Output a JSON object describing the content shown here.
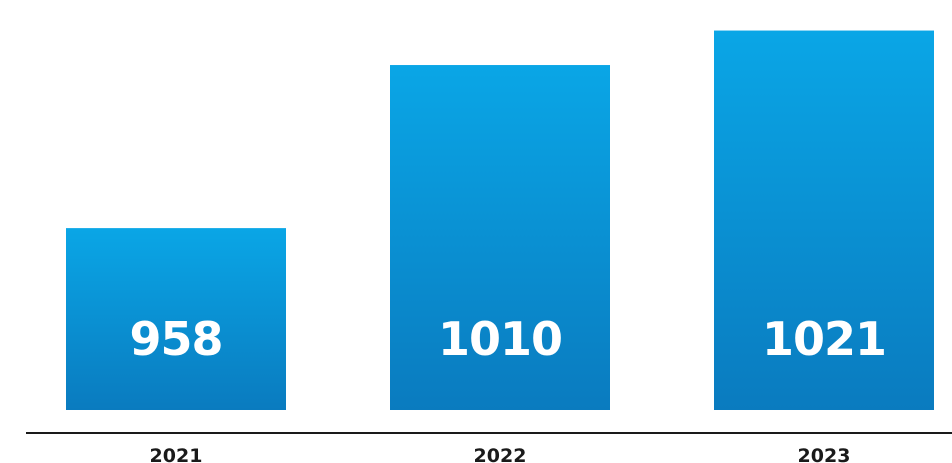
{
  "chart_data": {
    "type": "bar",
    "categories": [
      "2021",
      "2022",
      "2023"
    ],
    "values": [
      958,
      1010,
      1021
    ],
    "value_labels": [
      "958",
      "1010",
      "1021"
    ],
    "title": "",
    "xlabel": "",
    "ylabel": "",
    "ylim": [
      900,
      1025
    ],
    "grid": false,
    "legend": "none",
    "colors": {
      "bar_top": "#0aa6e6",
      "bar_bottom": "#0a7bbf",
      "value_text": "#ffffff",
      "tick_text": "#1a1a1a",
      "axis": "#1a1a1a"
    }
  }
}
